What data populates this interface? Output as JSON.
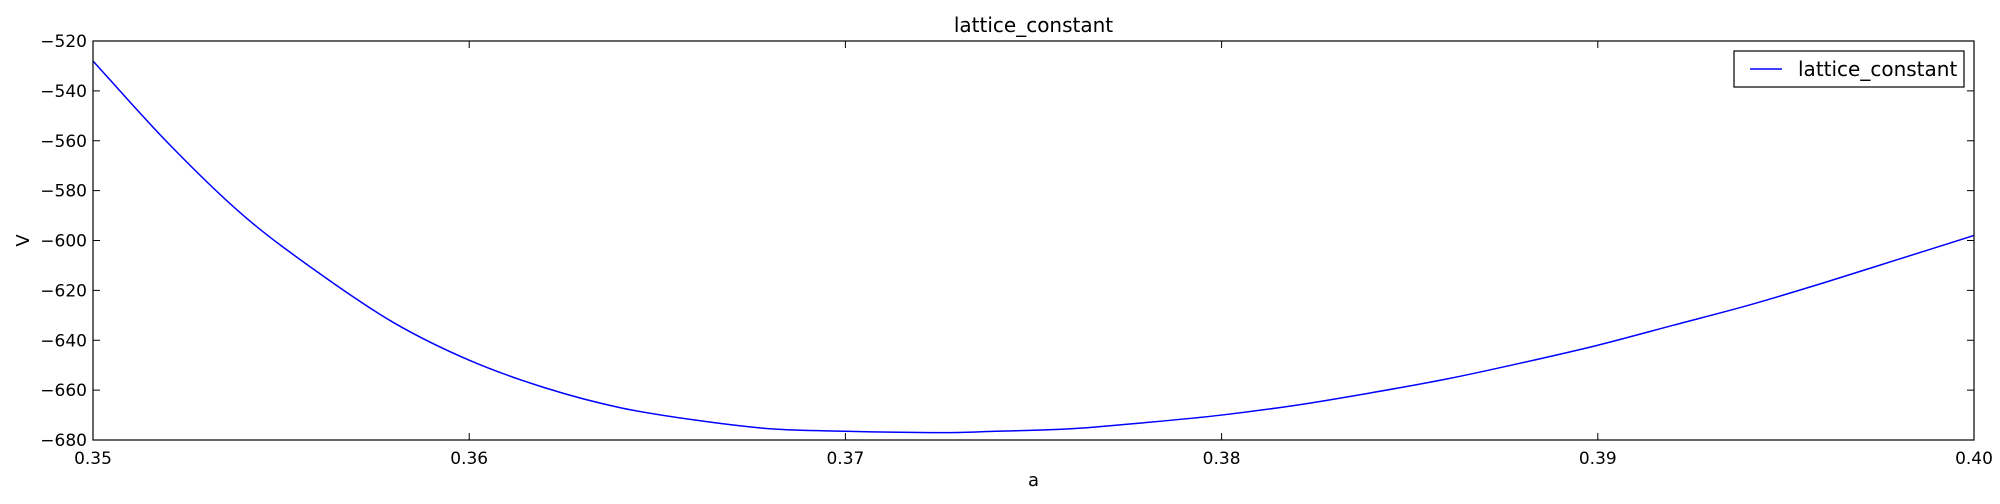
{
  "chart_data": {
    "type": "line",
    "title": "lattice_constant",
    "xlabel": "a",
    "ylabel": "V",
    "xlim": [
      0.35,
      0.4
    ],
    "ylim": [
      -680,
      -520
    ],
    "xticks": [
      0.35,
      0.36,
      0.37,
      0.38,
      0.39,
      0.4
    ],
    "xtick_labels": [
      "0.35",
      "0.36",
      "0.37",
      "0.38",
      "0.39",
      "0.40"
    ],
    "yticks": [
      -520,
      -540,
      -560,
      -580,
      -600,
      -620,
      -640,
      -660,
      -680
    ],
    "ytick_labels": [
      "−520",
      "−540",
      "−560",
      "−580",
      "−600",
      "−620",
      "−640",
      "−660",
      "−680"
    ],
    "grid": false,
    "legend": {
      "position": "top-right",
      "entries": [
        "lattice_constant"
      ]
    },
    "series": [
      {
        "name": "lattice_constant",
        "color": "#0000ff",
        "x": [
          0.35,
          0.352,
          0.354,
          0.356,
          0.358,
          0.36,
          0.362,
          0.364,
          0.366,
          0.368,
          0.37,
          0.372,
          0.373,
          0.374,
          0.376,
          0.378,
          0.38,
          0.382,
          0.384,
          0.386,
          0.388,
          0.39,
          0.392,
          0.394,
          0.396,
          0.398,
          0.4
        ],
        "y": [
          -528,
          -561,
          -590,
          -613,
          -633,
          -648,
          -659,
          -667,
          -672,
          -675.5,
          -676.5,
          -677,
          -677,
          -676.5,
          -675.5,
          -673,
          -670,
          -666,
          -661,
          -655.5,
          -649,
          -642,
          -634,
          -626,
          -617,
          -607.5,
          -598
        ]
      }
    ]
  }
}
